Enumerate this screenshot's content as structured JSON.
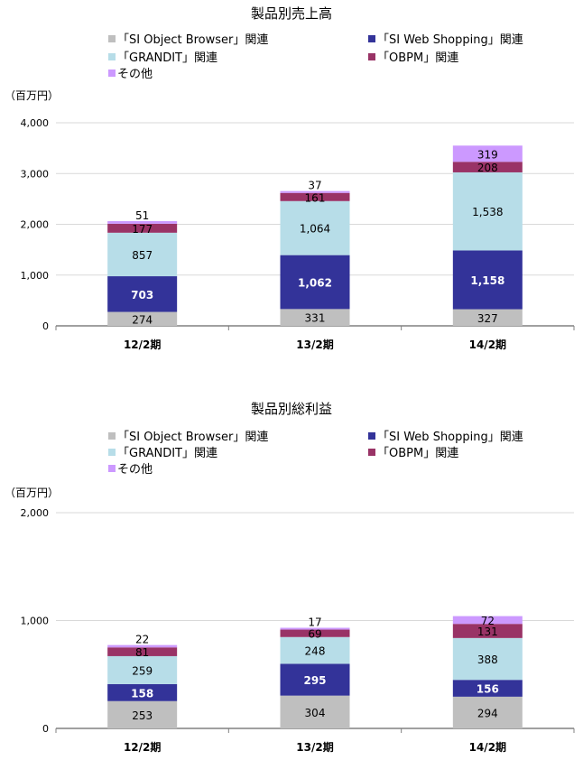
{
  "chart_data": [
    {
      "type": "bar",
      "stacked": true,
      "title": "製品別売上高",
      "ylabel": "（百万円）",
      "xlabel": "",
      "categories": [
        "12/2期",
        "13/2期",
        "14/2期"
      ],
      "ylim": [
        0,
        4000
      ],
      "yticks": [
        0,
        1000,
        2000,
        3000,
        4000
      ],
      "ytick_labels": [
        "0",
        "1,000",
        "2,000",
        "3,000",
        "4,000"
      ],
      "grid": true,
      "legend_position": "top",
      "series": [
        {
          "name": "「SI Object Browser」関連",
          "color": "#bfbfbf",
          "values": [
            274,
            331,
            327
          ]
        },
        {
          "name": "「SI Web Shopping」関連",
          "color": "#333399",
          "values": [
            703,
            1062,
            1158
          ]
        },
        {
          "name": "「GRANDIT」関連",
          "color": "#b7dde8",
          "values": [
            857,
            1064,
            1538
          ]
        },
        {
          "name": "「OBPM」関連",
          "color": "#993366",
          "values": [
            177,
            161,
            208
          ]
        },
        {
          "name": "その他",
          "color": "#cc99ff",
          "values": [
            51,
            37,
            319
          ]
        }
      ]
    },
    {
      "type": "bar",
      "stacked": true,
      "title": "製品別総利益",
      "ylabel": "（百万円）",
      "xlabel": "",
      "categories": [
        "12/2期",
        "13/2期",
        "14/2期"
      ],
      "ylim": [
        0,
        2000
      ],
      "yticks": [
        0,
        1000,
        2000
      ],
      "ytick_labels": [
        "0",
        "1,000",
        "2,000"
      ],
      "grid": true,
      "legend_position": "top",
      "series": [
        {
          "name": "「SI Object Browser」関連",
          "color": "#bfbfbf",
          "values": [
            253,
            304,
            294
          ]
        },
        {
          "name": "「SI Web Shopping」関連",
          "color": "#333399",
          "values": [
            158,
            295,
            156
          ]
        },
        {
          "name": "「GRANDIT」関連",
          "color": "#b7dde8",
          "values": [
            259,
            248,
            388
          ]
        },
        {
          "name": "「OBPM」関連",
          "color": "#993366",
          "values": [
            81,
            69,
            131
          ]
        },
        {
          "name": "その他",
          "color": "#cc99ff",
          "values": [
            22,
            17,
            72
          ]
        }
      ]
    }
  ]
}
